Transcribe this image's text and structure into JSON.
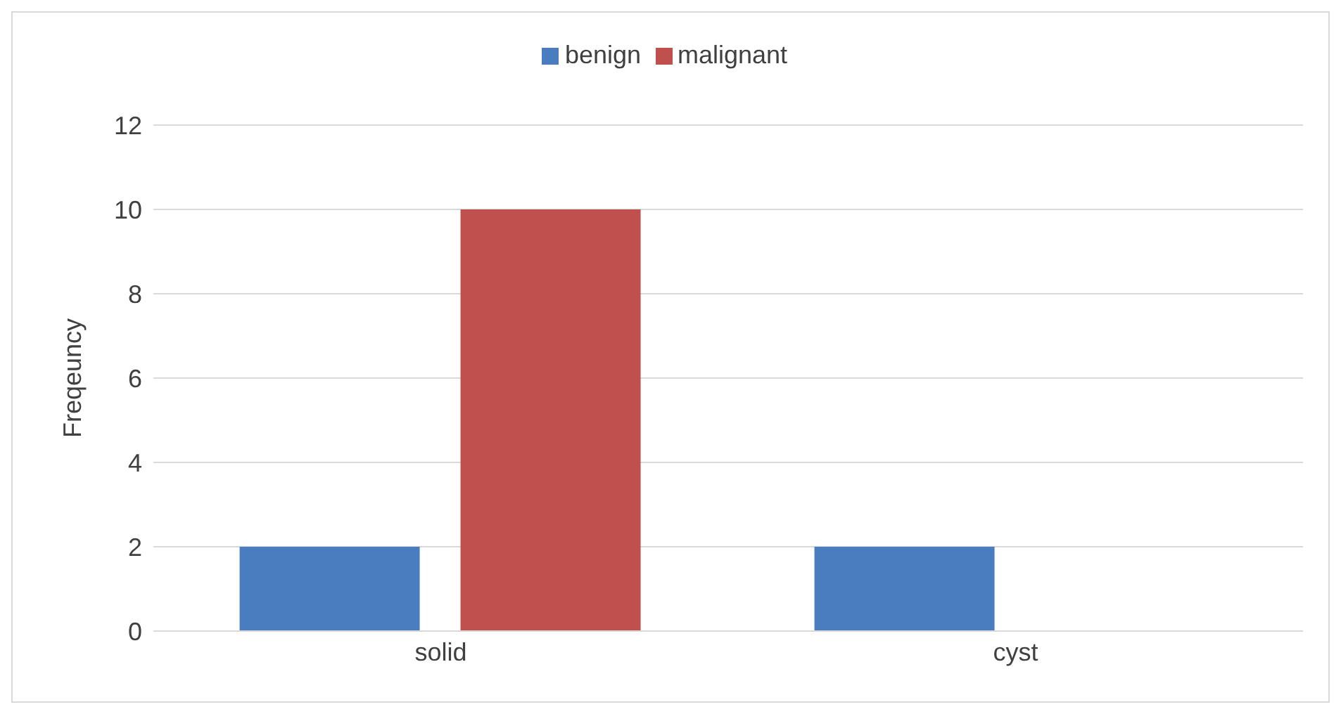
{
  "chart_data": {
    "type": "bar",
    "ylabel": "Freqeuncy",
    "categories": [
      "solid",
      "cyst"
    ],
    "series": [
      {
        "name": "benign",
        "color": "#4a7cc0",
        "values": [
          2,
          2
        ]
      },
      {
        "name": "malignant",
        "color": "#c0504d",
        "values": [
          10,
          0
        ]
      }
    ],
    "ylim": [
      0,
      12
    ],
    "yticks": [
      0,
      2,
      4,
      6,
      8,
      10,
      12
    ],
    "grid": "y",
    "legend": "top"
  }
}
